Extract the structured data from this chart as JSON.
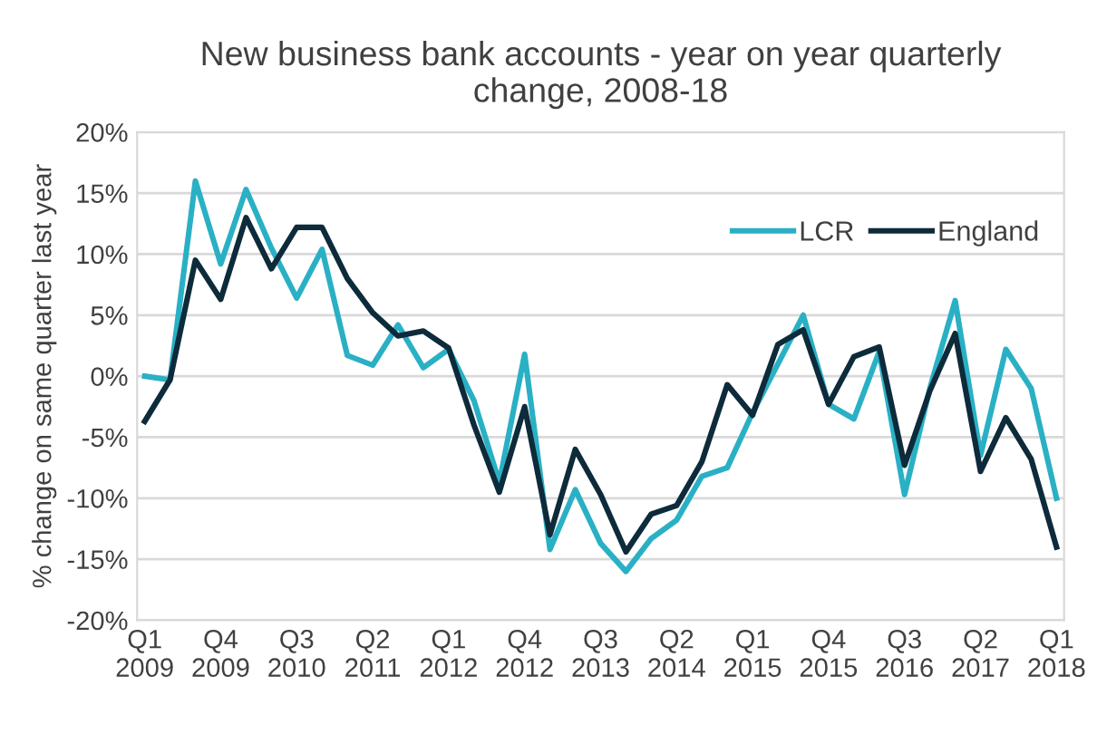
{
  "chart_data": {
    "type": "line",
    "title": "New business bank accounts - year on year quarterly\nchange, 2008-18",
    "ylabel": "% change on same quarter last year",
    "categories": [
      "Q1\n2009",
      null,
      null,
      "Q4\n2009",
      null,
      null,
      "Q3\n2010",
      null,
      null,
      "Q2\n2011",
      null,
      null,
      "Q1\n2012",
      null,
      null,
      "Q4\n2012",
      null,
      null,
      "Q3\n2013",
      null,
      null,
      "Q2\n2014",
      null,
      null,
      "Q1\n2015",
      null,
      null,
      "Q4\n2015",
      null,
      null,
      "Q3\n2016",
      null,
      null,
      "Q2\n2017",
      null,
      null,
      "Q1\n2018"
    ],
    "series": [
      {
        "name": "LCR",
        "color": "#2ab0c5",
        "values": [
          0,
          -0.3,
          16,
          9.2,
          15.3,
          10.5,
          6.4,
          10.4,
          1.7,
          0.9,
          4.2,
          0.7,
          2.2,
          -2,
          -8.7,
          1.8,
          -14.2,
          -9.3,
          -13.7,
          -16,
          -13.3,
          -11.8,
          -8.2,
          -7.5,
          -3,
          1,
          5,
          -2.3,
          -3.5,
          2,
          -9.7,
          -1,
          6.2,
          -6.5,
          2.2,
          -1,
          -10
        ]
      },
      {
        "name": "England",
        "color": "#0d2b3a",
        "values": [
          -3.7,
          -0.3,
          9.5,
          6.3,
          13,
          8.8,
          12.2,
          12.2,
          8,
          5.2,
          3.3,
          3.7,
          2.3,
          -4,
          -9.5,
          -2.5,
          -13,
          -6,
          -9.7,
          -14.4,
          -11.3,
          -10.6,
          -7,
          -0.7,
          -3.2,
          2.6,
          3.8,
          -2.3,
          1.6,
          2.4,
          -7.3,
          -1.2,
          3.5,
          -7.8,
          -3.4,
          -6.8,
          -14
        ]
      }
    ],
    "ylim": [
      -20,
      20
    ],
    "yticks": [
      {
        "value": -20,
        "label": "-20%"
      },
      {
        "value": -15,
        "label": "-15%"
      },
      {
        "value": -10,
        "label": "-10%"
      },
      {
        "value": -5,
        "label": "-5%"
      },
      {
        "value": 0,
        "label": "0%"
      },
      {
        "value": 5,
        "label": "5%"
      },
      {
        "value": 10,
        "label": "10%"
      },
      {
        "value": 15,
        "label": "15%"
      },
      {
        "value": 20,
        "label": "20%"
      }
    ],
    "grid": "y",
    "legend": "top right",
    "marker": "none",
    "line_style": "solid"
  }
}
